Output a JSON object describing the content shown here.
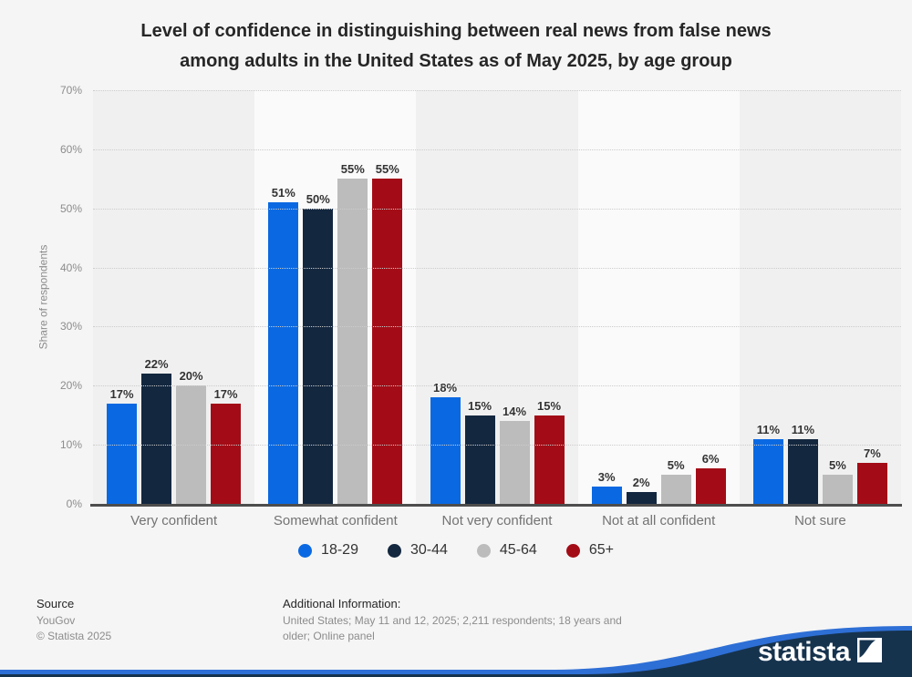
{
  "header": {
    "title_lines": [
      "Level of confidence in distinguishing between real news from false news",
      "among adults in the United States as of May 2025, by age group"
    ]
  },
  "chart_data": {
    "type": "bar",
    "title": "Level of confidence in distinguishing between real news from false news among adults in the United States as of May 2025, by age group",
    "categories": [
      "Very confident",
      "Somewhat confident",
      "Not very confident",
      "Not at all confident",
      "Not sure"
    ],
    "series": [
      {
        "name": "18-29",
        "color": "#0a69e2",
        "values": [
          17,
          51,
          18,
          3,
          11
        ]
      },
      {
        "name": "30-44",
        "color": "#13273f",
        "values": [
          22,
          50,
          15,
          2,
          11
        ]
      },
      {
        "name": "45-64",
        "color": "#bcbcbc",
        "values": [
          20,
          55,
          14,
          5,
          5
        ]
      },
      {
        "name": "65+",
        "color": "#a30c16",
        "values": [
          17,
          55,
          15,
          6,
          7
        ]
      }
    ],
    "xlabel": "",
    "ylabel": "Share of respondents",
    "ylim": [
      0,
      70
    ],
    "ytick_step": 10,
    "value_suffix": "%",
    "grid": "horizontal-dotted",
    "legend_position": "bottom"
  },
  "footer": {
    "source_label": "Source",
    "source_name": "YouGov",
    "copyright": "© Statista 2025",
    "additional_info_label": "Additional Information:",
    "additional_info": "United States; May 11 and 12, 2025; 2,211 respondents; 18 years and older; Online panel"
  },
  "branding": {
    "logo_text": "statista",
    "ribbon_navy": "#16334e",
    "ribbon_blue": "#2e6fd6"
  }
}
